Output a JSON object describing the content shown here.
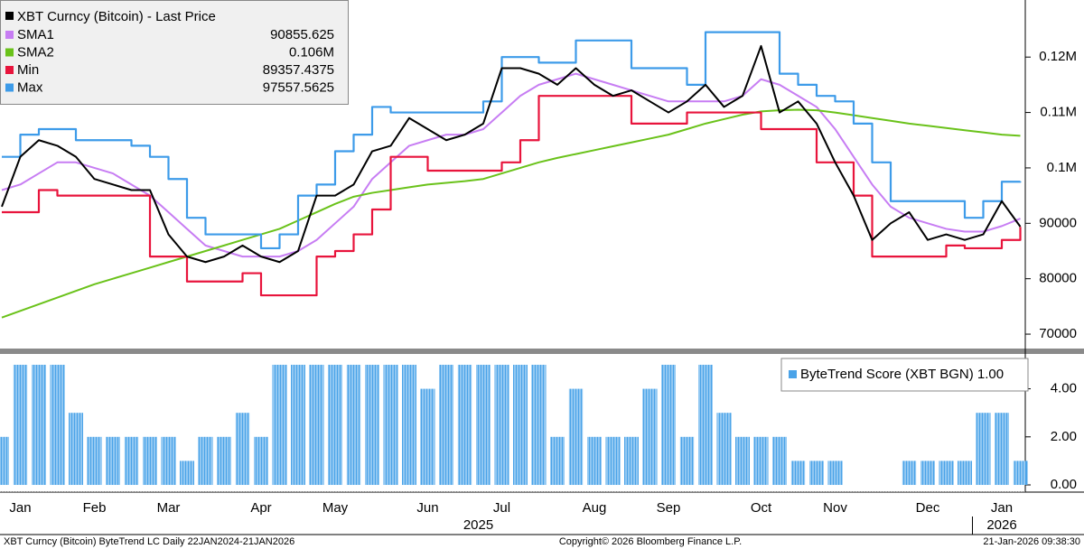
{
  "chart_data": [
    {
      "type": "line",
      "title": "XBT Curncy (Bitcoin) - Last Price",
      "ylim": [
        67400,
        130300
      ],
      "yticks": [
        70000,
        80000,
        90000,
        {
          "value": 100000,
          "label": "0.1M"
        },
        {
          "value": 110000,
          "label": "0.11M"
        },
        {
          "value": 120000,
          "label": "0.12M"
        }
      ],
      "series": [
        {
          "name": "SMA1",
          "color": "#c77df3",
          "legend_value": "90855.625",
          "values": [
            96000,
            97000,
            99000,
            101000,
            101000,
            100000,
            99000,
            97000,
            95000,
            92000,
            89000,
            86000,
            85000,
            84000,
            84000,
            84000,
            85000,
            87000,
            90000,
            93000,
            98000,
            101000,
            104000,
            105000,
            106000,
            106000,
            107000,
            110000,
            113000,
            115000,
            116000,
            117000,
            116000,
            115000,
            114000,
            113000,
            112000,
            112000,
            112000,
            112000,
            113000,
            116000,
            115000,
            113000,
            111000,
            107000,
            102000,
            97000,
            93000,
            91000,
            90000,
            89000,
            88500,
            88500,
            89500,
            90856
          ]
        },
        {
          "name": "SMA2",
          "color": "#6ac21a",
          "legend_value": "0.106M",
          "values": [
            73000,
            74200,
            75400,
            76600,
            77800,
            79000,
            80000,
            81000,
            82000,
            83000,
            84000,
            85000,
            86000,
            87000,
            88000,
            89000,
            90500,
            92000,
            93500,
            94800,
            95500,
            96000,
            96500,
            97000,
            97300,
            97600,
            98000,
            99000,
            100000,
            101000,
            101800,
            102500,
            103200,
            103900,
            104600,
            105300,
            106000,
            107000,
            108000,
            108800,
            109600,
            110200,
            110400,
            110500,
            110400,
            110000,
            109500,
            109000,
            108500,
            108000,
            107600,
            107200,
            106800,
            106400,
            106000,
            105800
          ]
        },
        {
          "name": "Min",
          "color": "#e8143c",
          "step": true,
          "legend_value": "89357.4375",
          "values": [
            92000,
            92000,
            96000,
            95000,
            95000,
            95000,
            95000,
            95000,
            84000,
            84000,
            79500,
            79500,
            79500,
            81000,
            77000,
            77000,
            77000,
            84000,
            85000,
            88000,
            92500,
            102000,
            102000,
            99500,
            99500,
            99500,
            99500,
            101000,
            105000,
            113000,
            113000,
            113000,
            113000,
            113000,
            108000,
            108000,
            108000,
            110000,
            110000,
            110000,
            110000,
            107000,
            107000,
            107000,
            101000,
            101000,
            95000,
            84000,
            84000,
            84000,
            84000,
            86000,
            85500,
            85500,
            87000,
            89357
          ]
        },
        {
          "name": "Max",
          "color": "#3d9be9",
          "step": true,
          "legend_value": "97557.5625",
          "values": [
            102000,
            106000,
            107000,
            107000,
            105000,
            105000,
            105000,
            104000,
            102000,
            98000,
            91000,
            88000,
            88000,
            88000,
            85500,
            88000,
            95000,
            97000,
            103000,
            106000,
            111000,
            110000,
            110000,
            110000,
            110000,
            110000,
            112000,
            120000,
            120000,
            119000,
            119000,
            123000,
            123000,
            123000,
            118000,
            118000,
            118000,
            115000,
            124500,
            124500,
            124500,
            124500,
            117000,
            115000,
            113000,
            112000,
            108000,
            101000,
            94000,
            94000,
            94000,
            94000,
            91000,
            94000,
            97500,
            97558
          ]
        },
        {
          "name": "Last Price",
          "color": "#000000",
          "values": [
            93000,
            102000,
            105000,
            104000,
            102000,
            98000,
            97000,
            96000,
            96000,
            88000,
            84000,
            83000,
            84000,
            86000,
            84000,
            83000,
            85000,
            95000,
            95000,
            97000,
            103000,
            104000,
            109000,
            107000,
            105000,
            106000,
            108000,
            118000,
            118000,
            117000,
            115000,
            118000,
            115000,
            113000,
            114000,
            112000,
            110000,
            112000,
            115000,
            111000,
            113000,
            122000,
            110000,
            112000,
            108000,
            101000,
            95000,
            87000,
            90000,
            92000,
            87000,
            88000,
            87000,
            88000,
            94000,
            89400
          ]
        }
      ]
    },
    {
      "type": "bar",
      "title": "ByteTrend Score (XBT BGN) 1.00",
      "color": "#4aa3e8",
      "ylim": [
        -0.3,
        5.45
      ],
      "yticks": [
        {
          "value": 0,
          "label": "0.00"
        },
        {
          "value": 2,
          "label": "2.00"
        },
        {
          "value": 4,
          "label": "4.00"
        }
      ],
      "categories": [
        null,
        "Jan",
        null,
        null,
        null,
        "Feb",
        null,
        null,
        null,
        "Mar",
        null,
        null,
        null,
        null,
        "Apr",
        null,
        null,
        null,
        "May",
        null,
        null,
        null,
        null,
        "Jun",
        null,
        null,
        null,
        "Jul",
        null,
        null,
        null,
        null,
        "Aug",
        null,
        null,
        null,
        "Sep",
        null,
        null,
        null,
        null,
        "Oct",
        null,
        null,
        null,
        "Nov",
        null,
        null,
        null,
        null,
        "Dec",
        null,
        null,
        null,
        "Jan",
        null
      ],
      "years": [
        "2025",
        "2026"
      ],
      "values": [
        2,
        5,
        5,
        5,
        3,
        2,
        2,
        2,
        2,
        2,
        1,
        2,
        2,
        3,
        2,
        5,
        5,
        5,
        5,
        5,
        5,
        5,
        5,
        4,
        5,
        5,
        5,
        5,
        5,
        5,
        2,
        4,
        2,
        2,
        2,
        4,
        5,
        2,
        5,
        3,
        2,
        2,
        2,
        1,
        1,
        1,
        0,
        0,
        0,
        1,
        1,
        1,
        1,
        3,
        3,
        1
      ]
    }
  ],
  "footer": {
    "left": "XBT Curncy (Bitcoin) ByteTrend LC Daily 22JAN2024-21JAN2026",
    "center": "Copyright© 2026 Bloomberg Finance L.P.",
    "right": "21-Jan-2026 09:38:30"
  }
}
